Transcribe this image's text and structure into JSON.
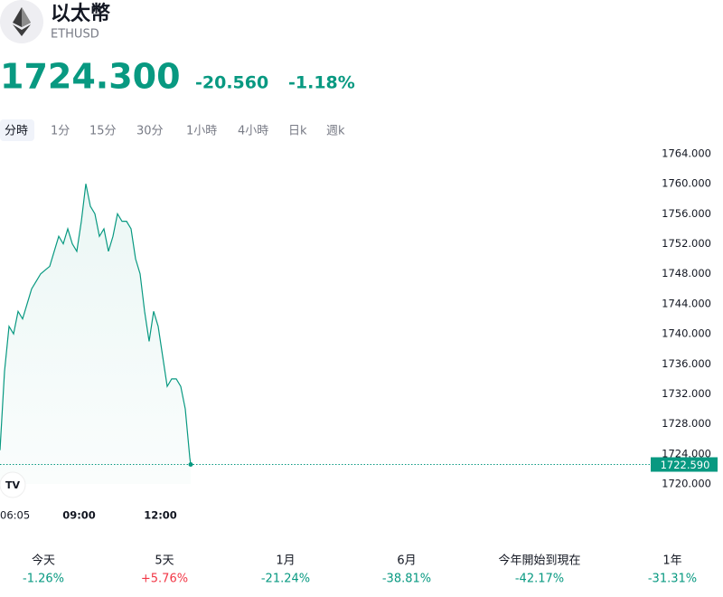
{
  "header": {
    "title": "以太幣",
    "symbol": "ETHUSD",
    "price": "1724.300",
    "change": "-20.560",
    "change_pct": "-1.18%"
  },
  "tabs": [
    "分時",
    "1分",
    "15分",
    "30分",
    "1小時",
    "4小時",
    "日k",
    "週k"
  ],
  "chart_data": {
    "type": "line",
    "color": "#089981",
    "x": [
      "06:05",
      "06:15",
      "06:25",
      "06:35",
      "06:45",
      "06:55",
      "07:05",
      "07:15",
      "07:25",
      "07:35",
      "07:45",
      "07:55",
      "08:05",
      "08:15",
      "08:25",
      "08:35",
      "08:45",
      "08:55",
      "09:05",
      "09:15",
      "09:25",
      "09:35",
      "09:45",
      "09:55",
      "10:05",
      "10:15",
      "10:25",
      "10:35",
      "10:45",
      "10:55",
      "11:05",
      "11:15",
      "11:25",
      "11:35",
      "11:45",
      "11:55",
      "12:05",
      "12:15",
      "12:25",
      "12:35",
      "12:45",
      "12:55",
      "13:05",
      "13:07"
    ],
    "values": [
      1724.5,
      1735,
      1741,
      1740,
      1743,
      1742,
      1744,
      1746,
      1747,
      1748,
      1748.5,
      1749,
      1751,
      1753,
      1752,
      1754,
      1752,
      1751,
      1755,
      1760,
      1757,
      1756,
      1753,
      1754,
      1751,
      1753,
      1756,
      1755,
      1755,
      1754,
      1750,
      1748,
      1743,
      1739,
      1743,
      1741,
      1737,
      1733,
      1734,
      1734,
      1733,
      1730,
      1723.5,
      1722.59
    ],
    "last_price": {
      "value": 1722.59,
      "label": "1722.590"
    },
    "ylim": [
      1720,
      1764
    ],
    "yticks": [
      {
        "value": 1720,
        "label": "1720.000"
      },
      {
        "value": 1724,
        "label": "1724.000"
      },
      {
        "value": 1728,
        "label": "1728.000"
      },
      {
        "value": 1732,
        "label": "1732.000"
      },
      {
        "value": 1736,
        "label": "1736.000"
      },
      {
        "value": 1740,
        "label": "1740.000"
      },
      {
        "value": 1744,
        "label": "1744.000"
      },
      {
        "value": 1748,
        "label": "1748.000"
      },
      {
        "value": 1752,
        "label": "1752.000"
      },
      {
        "value": 1756,
        "label": "1756.000"
      },
      {
        "value": 1760,
        "label": "1760.000"
      },
      {
        "value": 1764,
        "label": "1764.000"
      }
    ],
    "xticks": [
      "06:05",
      "09:00",
      "12:00"
    ]
  },
  "performance": [
    {
      "label": "今天",
      "value": "-1.26%",
      "color": "#089981"
    },
    {
      "label": "5天",
      "value": "+5.76%",
      "color": "#f23645"
    },
    {
      "label": "1月",
      "value": "-21.24%",
      "color": "#089981"
    },
    {
      "label": "6月",
      "value": "-38.81%",
      "color": "#089981"
    },
    {
      "label": "今年開始到現在",
      "value": "-42.17%",
      "color": "#089981"
    },
    {
      "label": "1年",
      "value": "-31.31%",
      "color": "#089981"
    }
  ]
}
